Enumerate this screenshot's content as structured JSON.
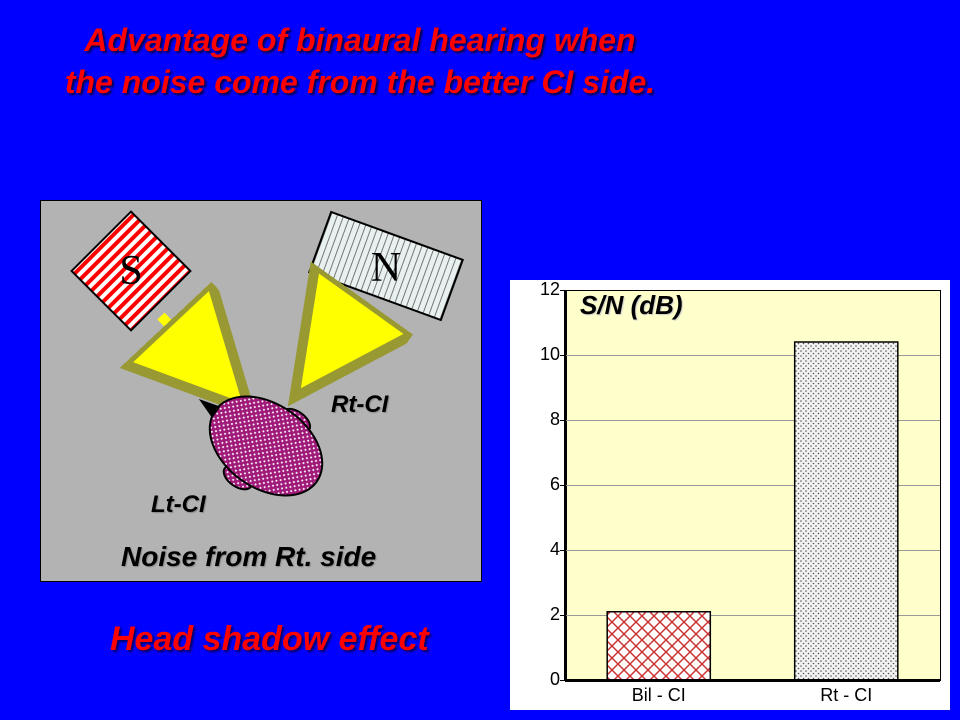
{
  "title": "Advantage of binaural hearing when the noise come from the better CI side.",
  "diagram": {
    "speaker_label": "S",
    "noise_label": "N",
    "lt_ci": "Lt-CI",
    "rt_ci": "Rt-CI",
    "noise_from": "Noise from Rt. side",
    "head_fill": "#a01a7a",
    "head_dot_color": "#ffffff",
    "arrow_color": "#ffff00",
    "arrow_stroke": "#999933",
    "speaker_stripe_a": "#ff0000",
    "speaker_stripe_b": "#ffffff",
    "noise_fill": "#e8f0f0",
    "noise_line": "#777777",
    "bg": "#b3b3b3"
  },
  "head_shadow": "Head shadow effect",
  "chart": {
    "type": "bar",
    "y_axis_label": "S/N (dB)",
    "categories": [
      "Bil - CI",
      "Rt - CI"
    ],
    "values": [
      2.1,
      10.4
    ],
    "ylim": [
      0,
      12
    ],
    "ytick_step": 2,
    "bar_fills": [
      "#ffd0d0",
      "#e8e8e8"
    ],
    "bar_pattern": [
      "crosshatch",
      "dots"
    ],
    "bar_pattern_color": [
      "#cc3333",
      "#555555"
    ],
    "plot_bg": "#ffffcc",
    "grid_color": "#999999",
    "axis_color": "#000000",
    "label_fontsize": 18,
    "bar_width_ratio": 0.55
  },
  "slide_bg": "#0000ff"
}
